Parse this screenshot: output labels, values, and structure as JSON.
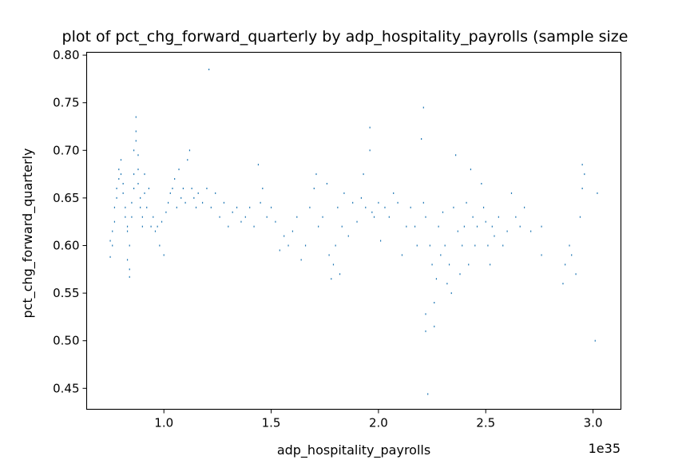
{
  "chart_data": {
    "type": "scatter",
    "title": "plot of pct_chg_forward_quarterly by adp_hospitality_payrolls (sample size",
    "xlabel": "adp_hospitality_payrolls",
    "ylabel": "pct_chg_forward_quarterly",
    "x_offset_label": "1e35",
    "xlim": [
      0.64,
      3.13
    ],
    "ylim": [
      0.428,
      0.803
    ],
    "x_ticks": [
      1.0,
      1.5,
      2.0,
      2.5,
      3.0
    ],
    "x_tick_labels": [
      "1.0",
      "1.5",
      "2.0",
      "2.5",
      "3.0"
    ],
    "y_ticks": [
      0.45,
      0.5,
      0.55,
      0.6,
      0.65,
      0.7,
      0.75,
      0.8
    ],
    "y_tick_labels": [
      "0.45",
      "0.50",
      "0.55",
      "0.60",
      "0.65",
      "0.70",
      "0.75",
      "0.80"
    ],
    "grid": false,
    "marker_color": "#1f77b4",
    "series": [
      {
        "points": [
          [
            0.75,
            0.588
          ],
          [
            0.75,
            0.605
          ],
          [
            0.76,
            0.6
          ],
          [
            0.76,
            0.615
          ],
          [
            0.77,
            0.625
          ],
          [
            0.77,
            0.64
          ],
          [
            0.78,
            0.65
          ],
          [
            0.78,
            0.66
          ],
          [
            0.79,
            0.67
          ],
          [
            0.79,
            0.68
          ],
          [
            0.8,
            0.69
          ],
          [
            0.8,
            0.675
          ],
          [
            0.81,
            0.665
          ],
          [
            0.81,
            0.655
          ],
          [
            0.82,
            0.64
          ],
          [
            0.82,
            0.63
          ],
          [
            0.83,
            0.62
          ],
          [
            0.83,
            0.615
          ],
          [
            0.83,
            0.585
          ],
          [
            0.84,
            0.575
          ],
          [
            0.84,
            0.567
          ],
          [
            0.84,
            0.6
          ],
          [
            0.85,
            0.63
          ],
          [
            0.85,
            0.645
          ],
          [
            0.86,
            0.66
          ],
          [
            0.86,
            0.675
          ],
          [
            0.86,
            0.7
          ],
          [
            0.87,
            0.71
          ],
          [
            0.87,
            0.72
          ],
          [
            0.87,
            0.735
          ],
          [
            0.88,
            0.695
          ],
          [
            0.88,
            0.68
          ],
          [
            0.88,
            0.665
          ],
          [
            0.89,
            0.65
          ],
          [
            0.89,
            0.64
          ],
          [
            0.9,
            0.63
          ],
          [
            0.9,
            0.62
          ],
          [
            0.91,
            0.655
          ],
          [
            0.91,
            0.675
          ],
          [
            0.92,
            0.64
          ],
          [
            0.93,
            0.66
          ],
          [
            0.94,
            0.62
          ],
          [
            0.95,
            0.63
          ],
          [
            0.96,
            0.615
          ],
          [
            0.97,
            0.62
          ],
          [
            0.98,
            0.6
          ],
          [
            0.99,
            0.625
          ],
          [
            1.0,
            0.59
          ],
          [
            1.01,
            0.635
          ],
          [
            1.02,
            0.645
          ],
          [
            1.03,
            0.655
          ],
          [
            1.04,
            0.66
          ],
          [
            1.05,
            0.67
          ],
          [
            1.06,
            0.64
          ],
          [
            1.07,
            0.68
          ],
          [
            1.08,
            0.65
          ],
          [
            1.09,
            0.66
          ],
          [
            1.1,
            0.645
          ],
          [
            1.11,
            0.69
          ],
          [
            1.12,
            0.7
          ],
          [
            1.13,
            0.66
          ],
          [
            1.14,
            0.65
          ],
          [
            1.15,
            0.64
          ],
          [
            1.16,
            0.655
          ],
          [
            1.18,
            0.645
          ],
          [
            1.2,
            0.66
          ],
          [
            1.21,
            0.785
          ],
          [
            1.22,
            0.64
          ],
          [
            1.24,
            0.655
          ],
          [
            1.26,
            0.63
          ],
          [
            1.28,
            0.645
          ],
          [
            1.3,
            0.62
          ],
          [
            1.32,
            0.635
          ],
          [
            1.34,
            0.64
          ],
          [
            1.36,
            0.625
          ],
          [
            1.38,
            0.63
          ],
          [
            1.4,
            0.64
          ],
          [
            1.42,
            0.62
          ],
          [
            1.44,
            0.685
          ],
          [
            1.45,
            0.645
          ],
          [
            1.46,
            0.66
          ],
          [
            1.48,
            0.63
          ],
          [
            1.5,
            0.64
          ],
          [
            1.52,
            0.625
          ],
          [
            1.54,
            0.595
          ],
          [
            1.56,
            0.61
          ],
          [
            1.58,
            0.6
          ],
          [
            1.6,
            0.615
          ],
          [
            1.62,
            0.63
          ],
          [
            1.64,
            0.585
          ],
          [
            1.66,
            0.6
          ],
          [
            1.68,
            0.64
          ],
          [
            1.7,
            0.66
          ],
          [
            1.71,
            0.675
          ],
          [
            1.72,
            0.62
          ],
          [
            1.74,
            0.63
          ],
          [
            1.76,
            0.665
          ],
          [
            1.77,
            0.59
          ],
          [
            1.78,
            0.565
          ],
          [
            1.79,
            0.58
          ],
          [
            1.8,
            0.6
          ],
          [
            1.81,
            0.64
          ],
          [
            1.82,
            0.57
          ],
          [
            1.83,
            0.62
          ],
          [
            1.84,
            0.655
          ],
          [
            1.86,
            0.61
          ],
          [
            1.88,
            0.645
          ],
          [
            1.9,
            0.625
          ],
          [
            1.92,
            0.65
          ],
          [
            1.93,
            0.675
          ],
          [
            1.94,
            0.64
          ],
          [
            1.96,
            0.7
          ],
          [
            1.96,
            0.724
          ],
          [
            1.97,
            0.635
          ],
          [
            1.98,
            0.63
          ],
          [
            2.0,
            0.645
          ],
          [
            2.01,
            0.605
          ],
          [
            2.03,
            0.64
          ],
          [
            2.05,
            0.63
          ],
          [
            2.07,
            0.655
          ],
          [
            2.09,
            0.645
          ],
          [
            2.11,
            0.59
          ],
          [
            2.13,
            0.62
          ],
          [
            2.15,
            0.64
          ],
          [
            2.17,
            0.62
          ],
          [
            2.18,
            0.6
          ],
          [
            2.2,
            0.712
          ],
          [
            2.21,
            0.745
          ],
          [
            2.21,
            0.645
          ],
          [
            2.22,
            0.63
          ],
          [
            2.22,
            0.528
          ],
          [
            2.22,
            0.51
          ],
          [
            2.23,
            0.444
          ],
          [
            2.24,
            0.6
          ],
          [
            2.25,
            0.58
          ],
          [
            2.26,
            0.54
          ],
          [
            2.26,
            0.515
          ],
          [
            2.27,
            0.565
          ],
          [
            2.28,
            0.62
          ],
          [
            2.29,
            0.59
          ],
          [
            2.3,
            0.635
          ],
          [
            2.31,
            0.6
          ],
          [
            2.32,
            0.56
          ],
          [
            2.33,
            0.58
          ],
          [
            2.34,
            0.55
          ],
          [
            2.35,
            0.64
          ],
          [
            2.36,
            0.695
          ],
          [
            2.37,
            0.615
          ],
          [
            2.38,
            0.57
          ],
          [
            2.39,
            0.6
          ],
          [
            2.4,
            0.62
          ],
          [
            2.41,
            0.645
          ],
          [
            2.42,
            0.58
          ],
          [
            2.43,
            0.68
          ],
          [
            2.44,
            0.63
          ],
          [
            2.45,
            0.6
          ],
          [
            2.46,
            0.62
          ],
          [
            2.48,
            0.665
          ],
          [
            2.49,
            0.64
          ],
          [
            2.5,
            0.625
          ],
          [
            2.51,
            0.6
          ],
          [
            2.52,
            0.58
          ],
          [
            2.53,
            0.62
          ],
          [
            2.54,
            0.61
          ],
          [
            2.56,
            0.63
          ],
          [
            2.58,
            0.6
          ],
          [
            2.6,
            0.615
          ],
          [
            2.62,
            0.655
          ],
          [
            2.64,
            0.63
          ],
          [
            2.66,
            0.62
          ],
          [
            2.68,
            0.64
          ],
          [
            2.71,
            0.615
          ],
          [
            2.76,
            0.62
          ],
          [
            2.76,
            0.59
          ],
          [
            2.86,
            0.56
          ],
          [
            2.87,
            0.58
          ],
          [
            2.89,
            0.6
          ],
          [
            2.9,
            0.59
          ],
          [
            2.92,
            0.57
          ],
          [
            2.94,
            0.63
          ],
          [
            2.95,
            0.66
          ],
          [
            2.95,
            0.685
          ],
          [
            2.96,
            0.675
          ],
          [
            3.01,
            0.5
          ],
          [
            3.02,
            0.655
          ]
        ]
      }
    ]
  }
}
